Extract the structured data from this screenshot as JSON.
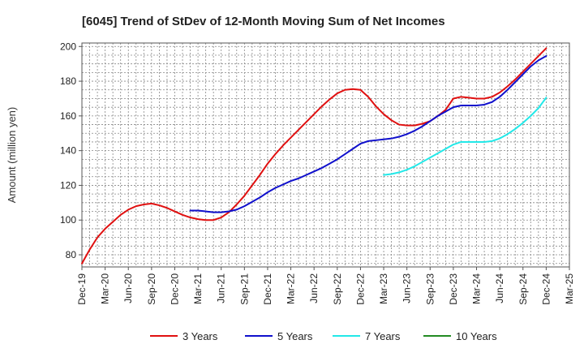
{
  "chart_data": {
    "type": "line",
    "title": "[6045]  Trend of StDev of 12-Month Moving Sum of Net Incomes",
    "ylabel": "Amount (million yen)",
    "xlabel": "",
    "ylim": [
      73,
      202
    ],
    "yticks": [
      80,
      100,
      120,
      140,
      160,
      180,
      200
    ],
    "x_start": "Dec-19",
    "x_end": "Mar-25",
    "xticks": [
      "Dec-19",
      "Mar-20",
      "Jun-20",
      "Sep-20",
      "Dec-20",
      "Mar-21",
      "Jun-21",
      "Sep-21",
      "Dec-21",
      "Mar-22",
      "Jun-22",
      "Sep-22",
      "Dec-22",
      "Mar-23",
      "Jun-23",
      "Sep-23",
      "Dec-23",
      "Mar-24",
      "Jun-24",
      "Sep-24",
      "Dec-24",
      "Mar-25"
    ],
    "grid": true,
    "legend_position": "bottom",
    "series": [
      {
        "name": "3 Years",
        "color": "#e01010",
        "x": [
          "Dec-19",
          "Jan-20",
          "Feb-20",
          "Mar-20",
          "Apr-20",
          "May-20",
          "Jun-20",
          "Jul-20",
          "Aug-20",
          "Sep-20",
          "Oct-20",
          "Nov-20",
          "Dec-20",
          "Jan-21",
          "Feb-21",
          "Mar-21",
          "Apr-21",
          "May-21",
          "Jun-21",
          "Jul-21",
          "Aug-21",
          "Sep-21",
          "Oct-21",
          "Nov-21",
          "Dec-21",
          "Jan-22",
          "Feb-22",
          "Mar-22",
          "Apr-22",
          "May-22",
          "Jun-22",
          "Jul-22",
          "Aug-22",
          "Sep-22",
          "Oct-22",
          "Nov-22",
          "Dec-22",
          "Jan-23",
          "Feb-23",
          "Mar-23",
          "Apr-23",
          "May-23",
          "Jun-23",
          "Jul-23",
          "Aug-23",
          "Sep-23",
          "Oct-23",
          "Nov-23",
          "Dec-23",
          "Jan-24",
          "Feb-24",
          "Mar-24",
          "Apr-24",
          "May-24",
          "Jun-24",
          "Jul-24",
          "Aug-24",
          "Sep-24",
          "Oct-24",
          "Nov-24",
          "Dec-24"
        ],
        "values": [
          75,
          83,
          90,
          95,
          99,
          103,
          106,
          108,
          109,
          109.5,
          108.5,
          107,
          105,
          103,
          101.5,
          100.5,
          100,
          100,
          101.5,
          104.5,
          109,
          114,
          120,
          126,
          132.5,
          138,
          143,
          147.5,
          152,
          156.5,
          161,
          165.5,
          169.5,
          173,
          175,
          175.5,
          175,
          171,
          165.5,
          161,
          157.5,
          155,
          154.5,
          154.5,
          155.5,
          157,
          160,
          163.5,
          170,
          171,
          170.5,
          170,
          170,
          171,
          173.5,
          177,
          181,
          185.5,
          190,
          194.5,
          199
        ]
      },
      {
        "name": "5 Years",
        "color": "#1010cc",
        "x": [
          "Dec-20",
          "Jan-21",
          "Feb-21",
          "Mar-21",
          "Apr-21",
          "May-21",
          "Jun-21",
          "Jul-21",
          "Aug-21",
          "Sep-21",
          "Oct-21",
          "Nov-21",
          "Dec-21",
          "Jan-22",
          "Feb-22",
          "Mar-22",
          "Apr-22",
          "May-22",
          "Jun-22",
          "Jul-22",
          "Aug-22",
          "Sep-22",
          "Oct-22",
          "Nov-22",
          "Dec-22",
          "Jan-23",
          "Feb-23",
          "Mar-23",
          "Apr-23",
          "May-23",
          "Jun-23",
          "Jul-23",
          "Aug-23",
          "Sep-23",
          "Oct-23",
          "Nov-23",
          "Dec-23",
          "Jan-24",
          "Feb-24",
          "Mar-24",
          "Apr-24",
          "May-24",
          "Jun-24",
          "Jul-24",
          "Aug-24",
          "Sep-24",
          "Oct-24",
          "Nov-24",
          "Dec-24"
        ],
        "values": [
          null,
          null,
          105.5,
          105.5,
          105,
          104.5,
          104.5,
          105,
          106,
          108,
          110.5,
          113,
          116,
          118.5,
          120.5,
          122.5,
          124,
          126,
          128,
          130,
          132.5,
          135,
          138,
          141,
          144,
          145.5,
          146,
          146.5,
          147,
          148,
          149.5,
          151.5,
          154,
          157,
          160,
          162.5,
          165,
          166,
          166,
          166,
          166.5,
          168,
          171,
          175,
          179.5,
          184,
          188.5,
          192,
          194.5
        ]
      },
      {
        "name": "7 Years",
        "color": "#22e8e8",
        "x": [
          "Mar-23",
          "Apr-23",
          "May-23",
          "Jun-23",
          "Jul-23",
          "Aug-23",
          "Sep-23",
          "Oct-23",
          "Nov-23",
          "Dec-23",
          "Jan-24",
          "Feb-24",
          "Mar-24",
          "Apr-24",
          "May-24",
          "Jun-24",
          "Jul-24",
          "Aug-24",
          "Sep-24",
          "Oct-24",
          "Nov-24",
          "Dec-24"
        ],
        "values": [
          126,
          126.5,
          127.5,
          129,
          131,
          133.5,
          136,
          138.5,
          141,
          143.5,
          145,
          145,
          145,
          145,
          145.5,
          147,
          149.5,
          152.5,
          156,
          160,
          164.5,
          170.5
        ]
      },
      {
        "name": "10 Years",
        "color": "#228b22",
        "x": [],
        "values": []
      }
    ]
  }
}
